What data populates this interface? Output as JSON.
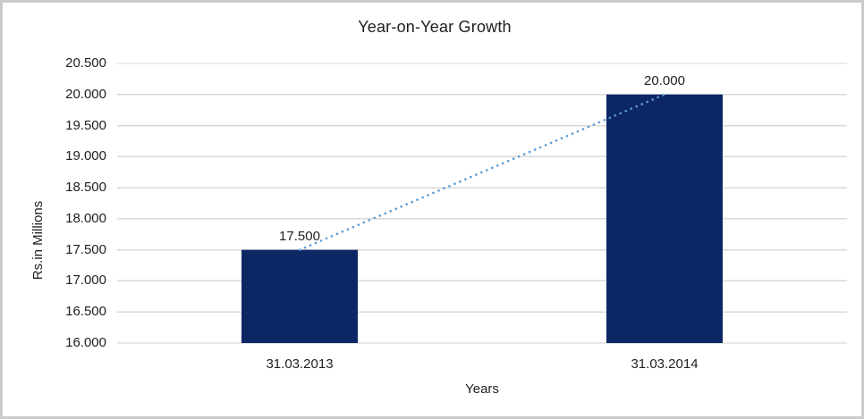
{
  "chart_data": {
    "type": "bar",
    "title": "Year-on-Year Growth",
    "xlabel": "Years",
    "ylabel": "Rs.in Millions",
    "categories": [
      "31.03.2013",
      "31.03.2014"
    ],
    "values": [
      17500,
      20000
    ],
    "value_labels": [
      "17.500",
      "20.000"
    ],
    "ylim": [
      16000,
      20500
    ],
    "ytick_step": 500,
    "ytick_labels": [
      "16.000",
      "16.500",
      "17.000",
      "17.500",
      "18.000",
      "18.500",
      "19.000",
      "19.500",
      "20.000",
      "20.500"
    ],
    "grid": true,
    "legend": "none",
    "trendline": {
      "style": "dotted",
      "from_value": 17500,
      "to_value": 20000
    },
    "colors": {
      "bar": "#0d2765",
      "trendline": "#5b9bd5",
      "gridline": "#d9d9d9",
      "axis_line": "#d0d0d0",
      "text": "#1f1f1f",
      "frame_border": "#cbcbcb"
    }
  }
}
